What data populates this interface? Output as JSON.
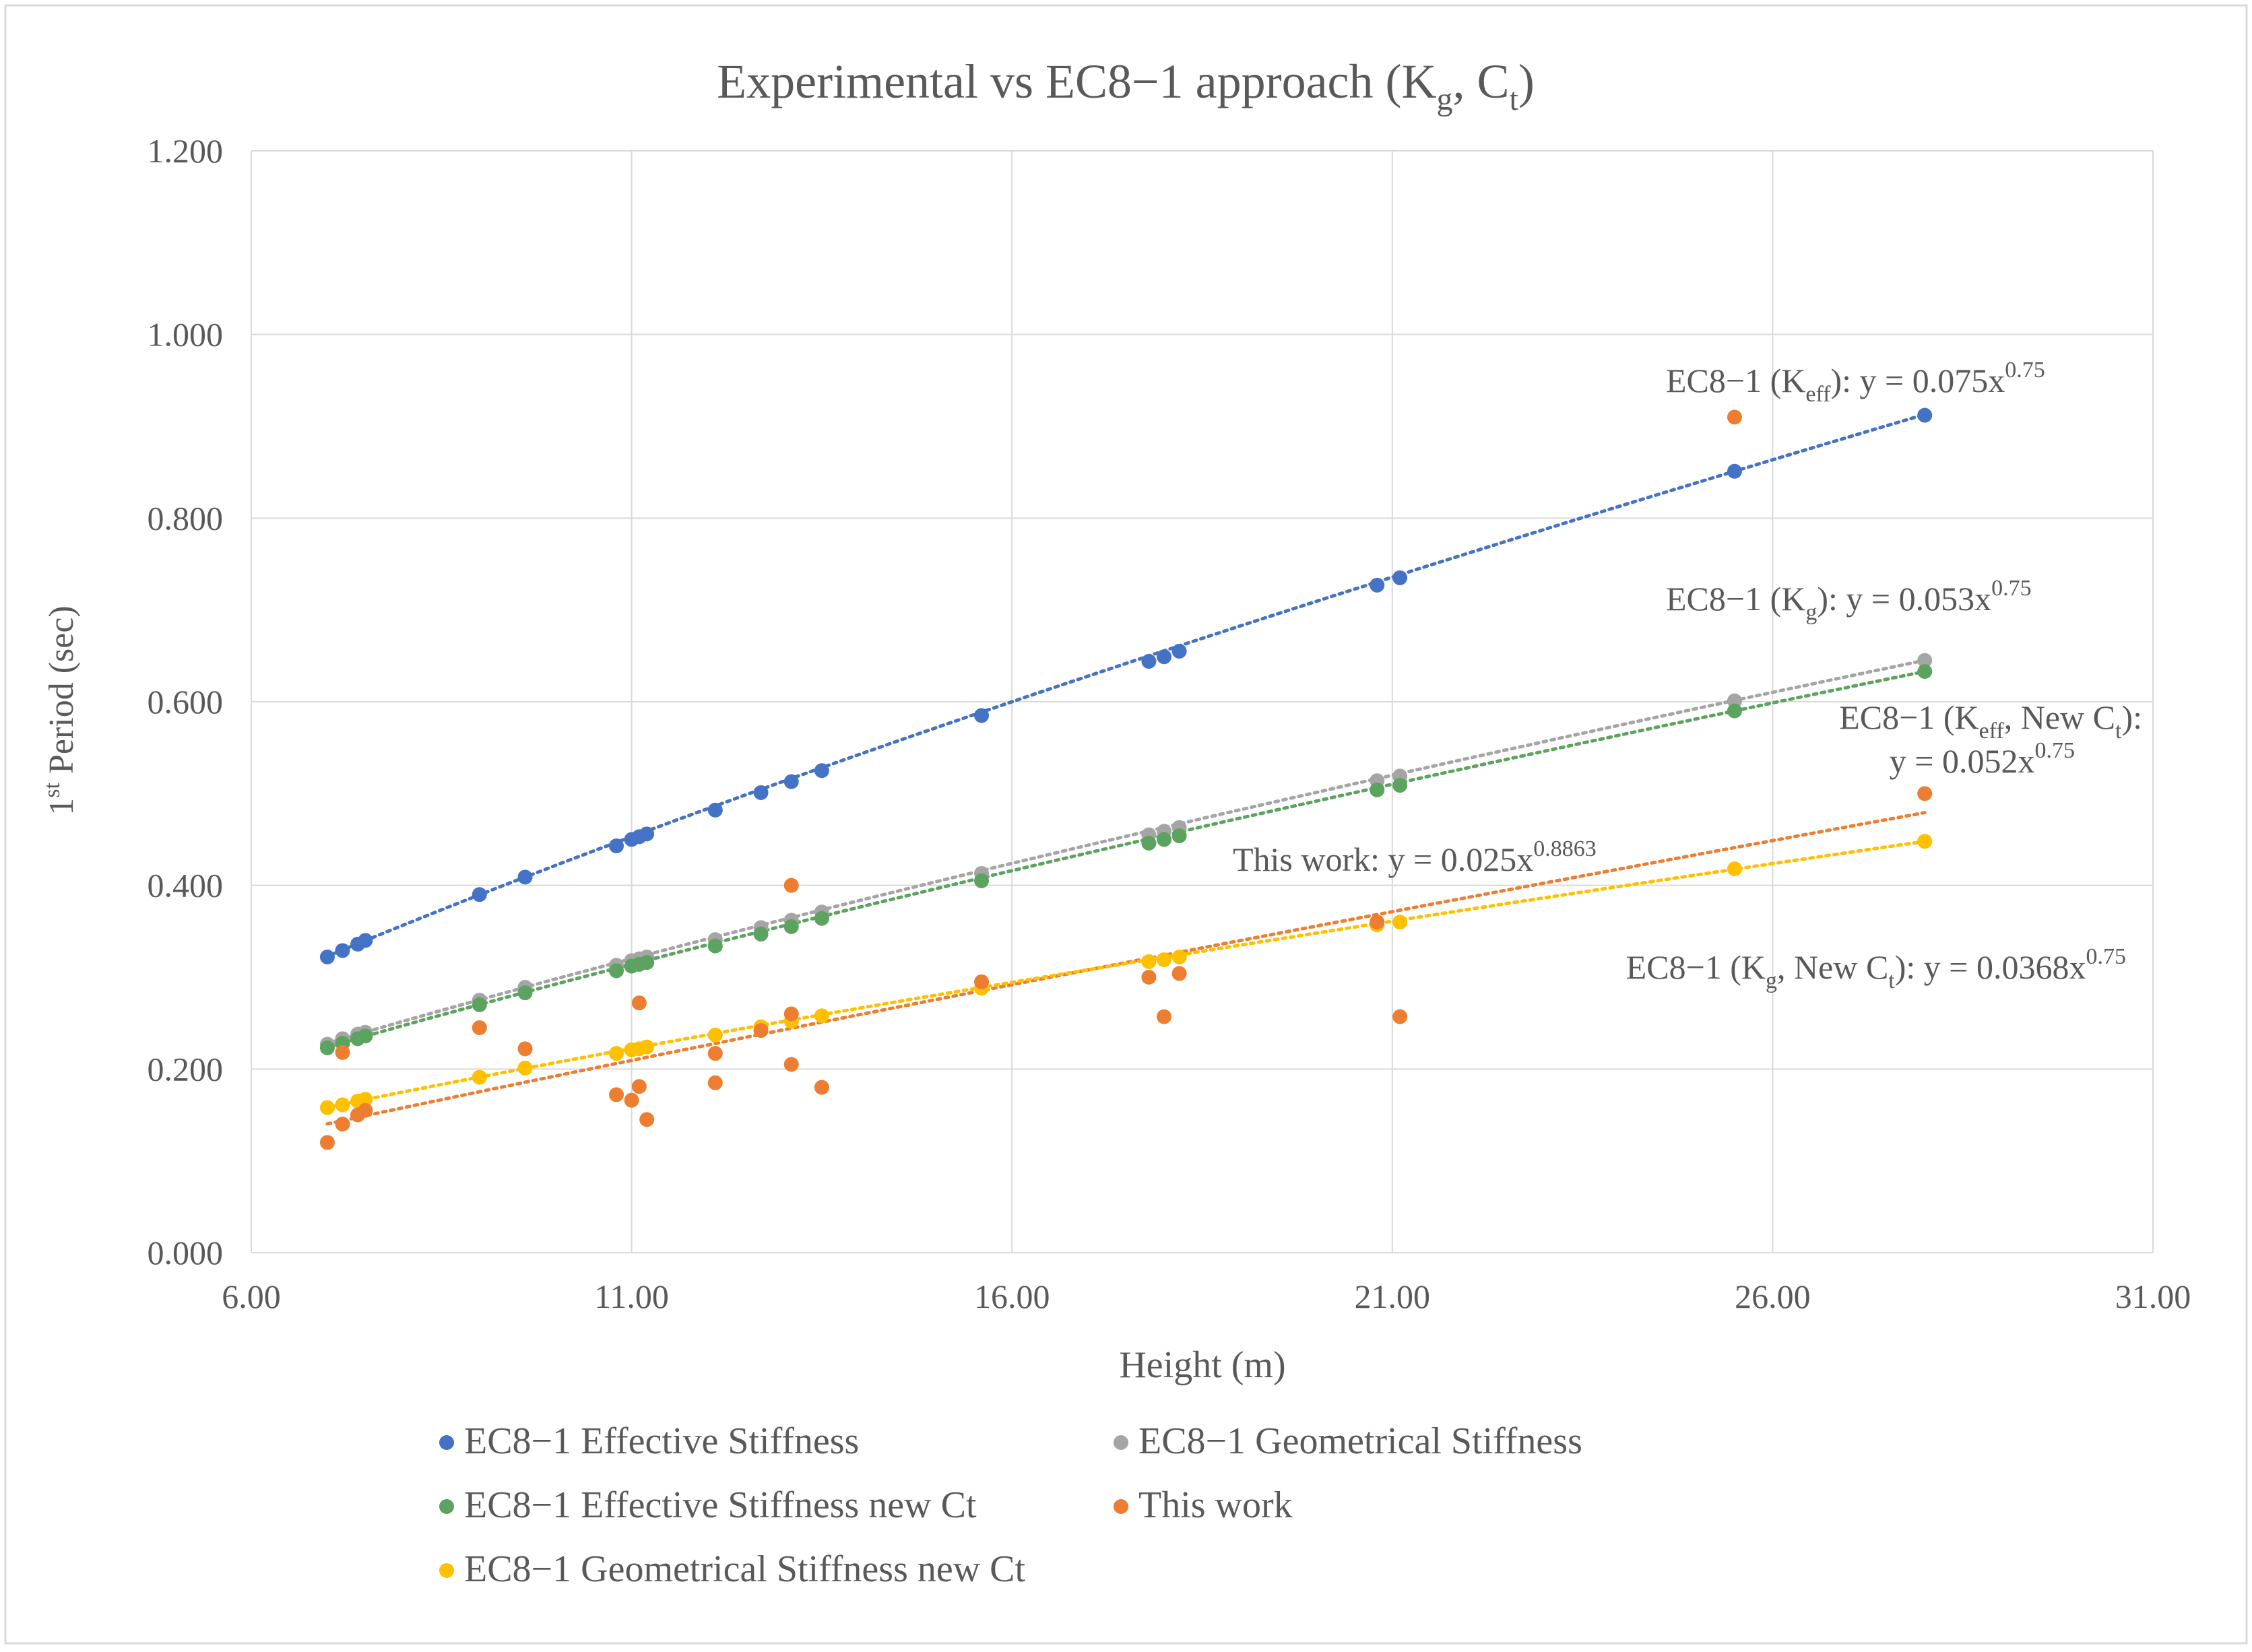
{
  "chart_data": {
    "type": "scatter",
    "title_main": "Experimental vs EC8−1 approach (K",
    "title_sub1": "g",
    "title_mid": ", C",
    "title_sub2": "t",
    "title_end": ")",
    "xlabel": "Height (m)",
    "ylabel_pre": "1",
    "ylabel_sup": "st",
    "ylabel_post": " Period (sec)",
    "xlim": [
      6,
      31
    ],
    "ylim": [
      0,
      1.2
    ],
    "x_ticks": [
      "6.00",
      "11.00",
      "16.00",
      "21.00",
      "26.00",
      "31.00"
    ],
    "y_ticks": [
      "0.000",
      "0.200",
      "0.400",
      "0.600",
      "0.800",
      "1.000",
      "1.200"
    ],
    "grid": true,
    "legend_position": "bottom",
    "series": [
      {
        "name": "EC8−1 Effective Stiffness",
        "color": "#4472C4",
        "trend": {
          "a": 0.075,
          "b": 0.75
        },
        "x": [
          7.0,
          7.2,
          7.4,
          7.5,
          9.0,
          9.6,
          10.8,
          11.0,
          11.1,
          11.2,
          12.1,
          12.7,
          13.1,
          13.5,
          15.6,
          17.8,
          18.0,
          18.2,
          20.8,
          21.1,
          25.5,
          28.0
        ],
        "y": [
          0.322,
          0.329,
          0.336,
          0.34,
          0.39,
          0.409,
          0.443,
          0.45,
          0.453,
          0.456,
          0.482,
          0.501,
          0.513,
          0.525,
          0.585,
          0.644,
          0.649,
          0.655,
          0.727,
          0.735,
          0.851,
          0.912
        ]
      },
      {
        "name": "EC8−1 Geometrical Stiffness",
        "color": "#A5A5A5",
        "trend": {
          "a": 0.053,
          "b": 0.75
        },
        "x": [
          7.0,
          7.2,
          7.4,
          7.5,
          9.0,
          9.6,
          10.8,
          11.0,
          11.1,
          11.2,
          12.1,
          12.7,
          13.1,
          13.5,
          15.6,
          17.8,
          18.0,
          18.2,
          20.8,
          21.1,
          25.5,
          28.0
        ],
        "y": [
          0.227,
          0.233,
          0.238,
          0.24,
          0.275,
          0.289,
          0.313,
          0.318,
          0.32,
          0.322,
          0.341,
          0.354,
          0.362,
          0.371,
          0.413,
          0.455,
          0.459,
          0.463,
          0.514,
          0.519,
          0.601,
          0.645
        ]
      },
      {
        "name": "EC8−1 Effective Stiffness new Ct",
        "color": "#5BA35E",
        "trend": {
          "a": 0.052,
          "b": 0.75
        },
        "x": [
          7.0,
          7.2,
          7.4,
          7.5,
          9.0,
          9.6,
          10.8,
          11.0,
          11.1,
          11.2,
          12.1,
          12.7,
          13.1,
          13.5,
          15.6,
          17.8,
          18.0,
          18.2,
          20.8,
          21.1,
          25.5,
          28.0
        ],
        "y": [
          0.223,
          0.228,
          0.233,
          0.236,
          0.27,
          0.283,
          0.307,
          0.312,
          0.314,
          0.316,
          0.334,
          0.347,
          0.355,
          0.364,
          0.405,
          0.446,
          0.45,
          0.454,
          0.504,
          0.509,
          0.59,
          0.633
        ]
      },
      {
        "name": "This work",
        "color": "#ED7D31",
        "trend": {
          "a": 0.025,
          "b": 0.8863
        },
        "x": [
          7.0,
          7.2,
          7.2,
          7.4,
          7.5,
          9.0,
          9.6,
          10.8,
          11.0,
          11.1,
          11.1,
          11.2,
          12.1,
          12.1,
          12.7,
          13.1,
          13.1,
          13.1,
          13.5,
          15.6,
          17.8,
          18.0,
          18.2,
          20.8,
          21.1,
          25.5,
          28.0
        ],
        "y": [
          0.12,
          0.14,
          0.218,
          0.15,
          0.155,
          0.245,
          0.222,
          0.172,
          0.166,
          0.272,
          0.181,
          0.145,
          0.185,
          0.217,
          0.242,
          0.4,
          0.26,
          0.205,
          0.18,
          0.295,
          0.3,
          0.257,
          0.304,
          0.36,
          0.257,
          0.91,
          0.5
        ]
      },
      {
        "name": "EC8−1 Geometrical Stiffness new Ct",
        "color": "#FFC000",
        "trend": {
          "a": 0.0368,
          "b": 0.75
        },
        "x": [
          7.0,
          7.2,
          7.4,
          7.5,
          9.0,
          9.6,
          10.8,
          11.0,
          11.1,
          11.2,
          12.1,
          12.7,
          13.1,
          13.5,
          15.6,
          17.8,
          18.0,
          18.2,
          20.8,
          21.1,
          25.5,
          28.0
        ],
        "y": [
          0.158,
          0.161,
          0.165,
          0.167,
          0.191,
          0.201,
          0.217,
          0.221,
          0.222,
          0.224,
          0.237,
          0.246,
          0.252,
          0.258,
          0.288,
          0.317,
          0.319,
          0.322,
          0.357,
          0.36,
          0.418,
          0.448
        ]
      }
    ],
    "annotations": [
      {
        "key": "keff",
        "parts": [
          [
            "EC8−1 (K",
            "n"
          ],
          [
            "eff",
            "sub"
          ],
          [
            "): y = 0.075x",
            "n"
          ],
          [
            "0.75",
            "sup"
          ]
        ]
      },
      {
        "key": "kg",
        "parts": [
          [
            "EC8−1 (K",
            "n"
          ],
          [
            "g",
            "sub"
          ],
          [
            "): y = 0.053x",
            "n"
          ],
          [
            "0.75",
            "sup"
          ]
        ]
      },
      {
        "key": "keff_new1",
        "parts": [
          [
            "EC8−1 (K",
            "n"
          ],
          [
            "eff",
            "sub"
          ],
          [
            ", New C",
            "n"
          ],
          [
            "t",
            "sub"
          ],
          [
            "):",
            "n"
          ]
        ]
      },
      {
        "key": "keff_new2",
        "parts": [
          [
            "y = 0.052x",
            "n"
          ],
          [
            "0.75",
            "sup"
          ]
        ]
      },
      {
        "key": "thiswork",
        "parts": [
          [
            "This work: y = 0.025x",
            "n"
          ],
          [
            "0.8863",
            "sup"
          ]
        ]
      },
      {
        "key": "kg_new",
        "parts": [
          [
            "EC8−1 (K",
            "n"
          ],
          [
            "g",
            "sub"
          ],
          [
            ", New C",
            "n"
          ],
          [
            "t",
            "sub"
          ],
          [
            "): y = 0.0368x",
            "n"
          ],
          [
            "0.75",
            "sup"
          ]
        ]
      }
    ]
  }
}
